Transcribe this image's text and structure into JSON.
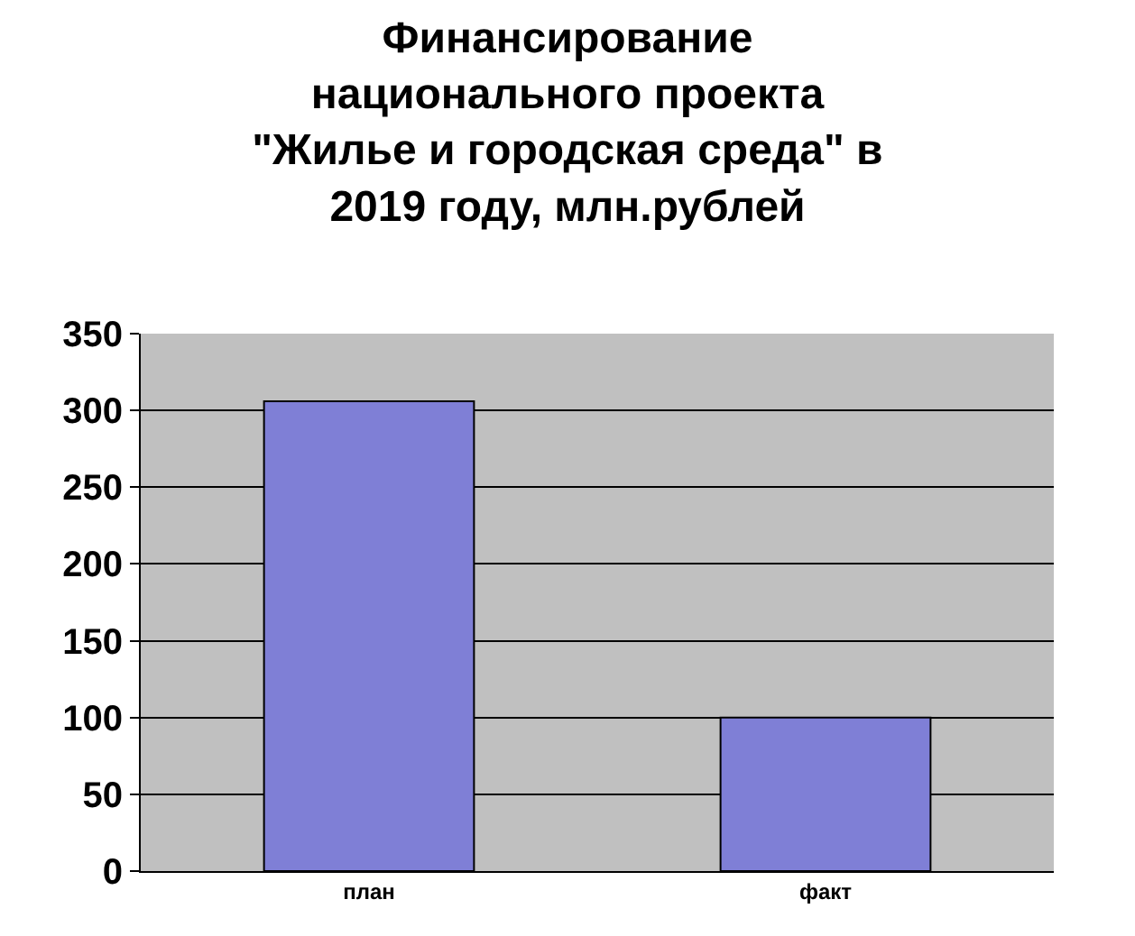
{
  "chart_data": {
    "type": "bar",
    "title": "Финансирование национального проекта \"Жилье и городская среда\" в 2019 году, млн.рублей",
    "categories": [
      "план",
      "факт"
    ],
    "series": [
      {
        "color": "#7f7fd6",
        "values": [
          306,
          100
        ]
      }
    ],
    "ylim": [
      0,
      350
    ],
    "yticks": [
      0,
      50,
      100,
      150,
      200,
      250,
      300,
      350
    ],
    "grid": "y"
  }
}
